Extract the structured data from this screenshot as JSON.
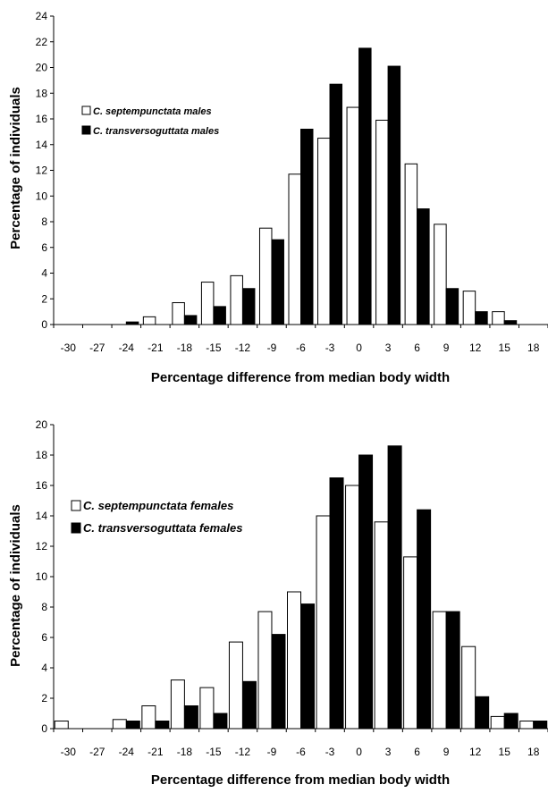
{
  "chart_data": [
    {
      "type": "bar",
      "title": "",
      "xlabel": "Percentage difference from median body width",
      "ylabel": "Percentage of individuals",
      "ylim": [
        0,
        24
      ],
      "yticks": [
        0,
        2,
        4,
        6,
        8,
        10,
        12,
        14,
        16,
        18,
        20,
        22,
        24
      ],
      "grid": false,
      "legend_position": "left",
      "categories": [
        "-30",
        "-27",
        "-24",
        "-21",
        "-18",
        "-15",
        "-12",
        "-9",
        "-6",
        "-3",
        "0",
        "3",
        "6",
        "9",
        "12",
        "15",
        "18"
      ],
      "series": [
        {
          "name": "C. septempunctata males",
          "color": "#ffffff",
          "values": [
            0,
            0,
            0,
            0.6,
            1.7,
            3.3,
            3.8,
            7.5,
            11.7,
            14.5,
            16.9,
            15.9,
            12.5,
            7.8,
            2.6,
            1.0,
            0
          ]
        },
        {
          "name": "C. transversoguttata males",
          "color": "#000000",
          "values": [
            0,
            0,
            0.2,
            0,
            0.7,
            1.4,
            2.8,
            6.6,
            15.2,
            18.7,
            21.5,
            20.1,
            9.0,
            2.8,
            1.0,
            0.3,
            0
          ]
        }
      ]
    },
    {
      "type": "bar",
      "title": "",
      "xlabel": "Percentage difference from median body width",
      "ylabel": "Percentage of individuals",
      "ylim": [
        0,
        20
      ],
      "yticks": [
        0,
        2,
        4,
        6,
        8,
        10,
        12,
        14,
        16,
        18,
        20
      ],
      "grid": false,
      "legend_position": "left",
      "categories": [
        "-30",
        "-27",
        "-24",
        "-21",
        "-18",
        "-15",
        "-12",
        "-9",
        "-6",
        "-3",
        "0",
        "3",
        "6",
        "9",
        "12",
        "15",
        "18"
      ],
      "series": [
        {
          "name": "C. septempunctata females",
          "color": "#ffffff",
          "values": [
            0.5,
            0,
            0.6,
            1.5,
            3.2,
            2.7,
            5.7,
            7.7,
            9.0,
            14.0,
            16.0,
            13.6,
            11.3,
            7.7,
            5.4,
            0.8,
            0.5
          ]
        },
        {
          "name": "C. transversoguttata females",
          "color": "#000000",
          "values": [
            0,
            0,
            0.5,
            0.5,
            1.5,
            1.0,
            3.1,
            6.2,
            8.2,
            16.5,
            18.0,
            18.6,
            14.4,
            7.7,
            2.1,
            1.0,
            0.5
          ]
        }
      ]
    }
  ]
}
